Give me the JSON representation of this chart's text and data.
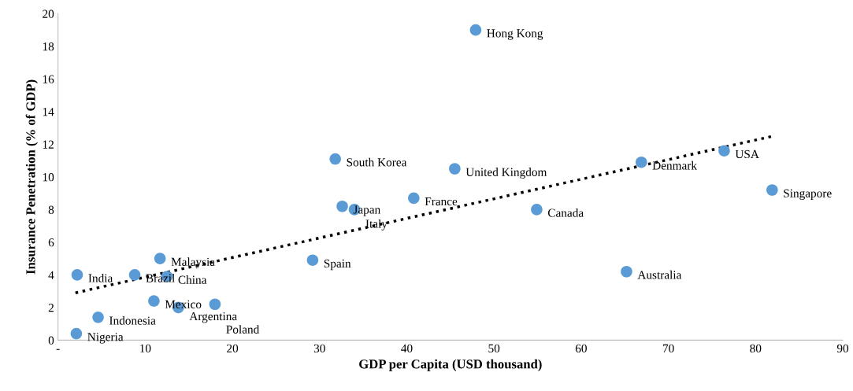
{
  "chart_data": {
    "type": "scatter",
    "xlabel": "GDP per Capita (USD thousand)",
    "ylabel": "Insurance Penetration (% of GDP)",
    "xlim": [
      0,
      90
    ],
    "xticks": [
      {
        "value": 0,
        "label": "-"
      },
      10,
      20,
      30,
      40,
      50,
      60,
      70,
      80,
      90
    ],
    "ylim": [
      0,
      20
    ],
    "yticks": [
      0,
      2,
      4,
      6,
      8,
      10,
      12,
      14,
      16,
      18,
      20
    ],
    "grid": false,
    "legend": false,
    "marker": "circle",
    "series": [
      {
        "color": "#5b9bd5",
        "x": [
          47.9,
          31.8,
          45.5,
          66.9,
          76.4,
          81.9,
          32.6,
          34.0,
          40.8,
          54.9,
          29.2,
          65.2,
          11.7,
          2.2,
          8.8,
          12.5,
          11.0,
          13.8,
          18.0,
          4.6,
          2.1
        ],
        "values": [
          19.0,
          11.1,
          10.5,
          10.9,
          11.6,
          9.2,
          8.2,
          8.0,
          8.7,
          8.0,
          4.9,
          4.2,
          5.0,
          4.0,
          4.0,
          3.9,
          2.4,
          2.0,
          2.2,
          1.4,
          0.4
        ]
      },
      {
        "type": "line",
        "marker": "none",
        "color": "#000000",
        "line_style": "dotted",
        "x": [
          2,
          82
        ],
        "values": [
          2.9,
          12.5
        ]
      }
    ],
    "annotations": [
      {
        "text": "Hong Kong",
        "x": 47.9,
        "y": 19.0
      },
      {
        "text": "South Korea",
        "x": 31.8,
        "y": 11.1
      },
      {
        "text": "United Kingdom",
        "x": 45.5,
        "y": 10.5
      },
      {
        "text": "Denmark",
        "x": 66.9,
        "y": 10.9
      },
      {
        "text": "USA",
        "x": 76.4,
        "y": 11.6
      },
      {
        "text": "Singapore",
        "x": 81.9,
        "y": 9.2
      },
      {
        "text": "Japan",
        "x": 32.6,
        "y": 8.2
      },
      {
        "text": "Italy",
        "x": 34.0,
        "y": 8.0
      },
      {
        "text": "France",
        "x": 40.8,
        "y": 8.7
      },
      {
        "text": "Canada",
        "x": 54.9,
        "y": 8.0
      },
      {
        "text": "Spain",
        "x": 29.2,
        "y": 4.9
      },
      {
        "text": "Australia",
        "x": 65.2,
        "y": 4.2
      },
      {
        "text": "Malaysia",
        "x": 11.7,
        "y": 5.0
      },
      {
        "text": "India",
        "x": 2.2,
        "y": 4.0
      },
      {
        "text": "Brazil",
        "x": 8.8,
        "y": 4.0
      },
      {
        "text": "China",
        "x": 12.5,
        "y": 3.9
      },
      {
        "text": "Mexico",
        "x": 11.0,
        "y": 2.4
      },
      {
        "text": "Argentina",
        "x": 13.8,
        "y": 2.0
      },
      {
        "text": "Poland",
        "x": 18.0,
        "y": 2.2
      },
      {
        "text": "Indonesia",
        "x": 4.6,
        "y": 1.4
      },
      {
        "text": "Nigeria",
        "x": 2.1,
        "y": 0.4
      }
    ]
  }
}
